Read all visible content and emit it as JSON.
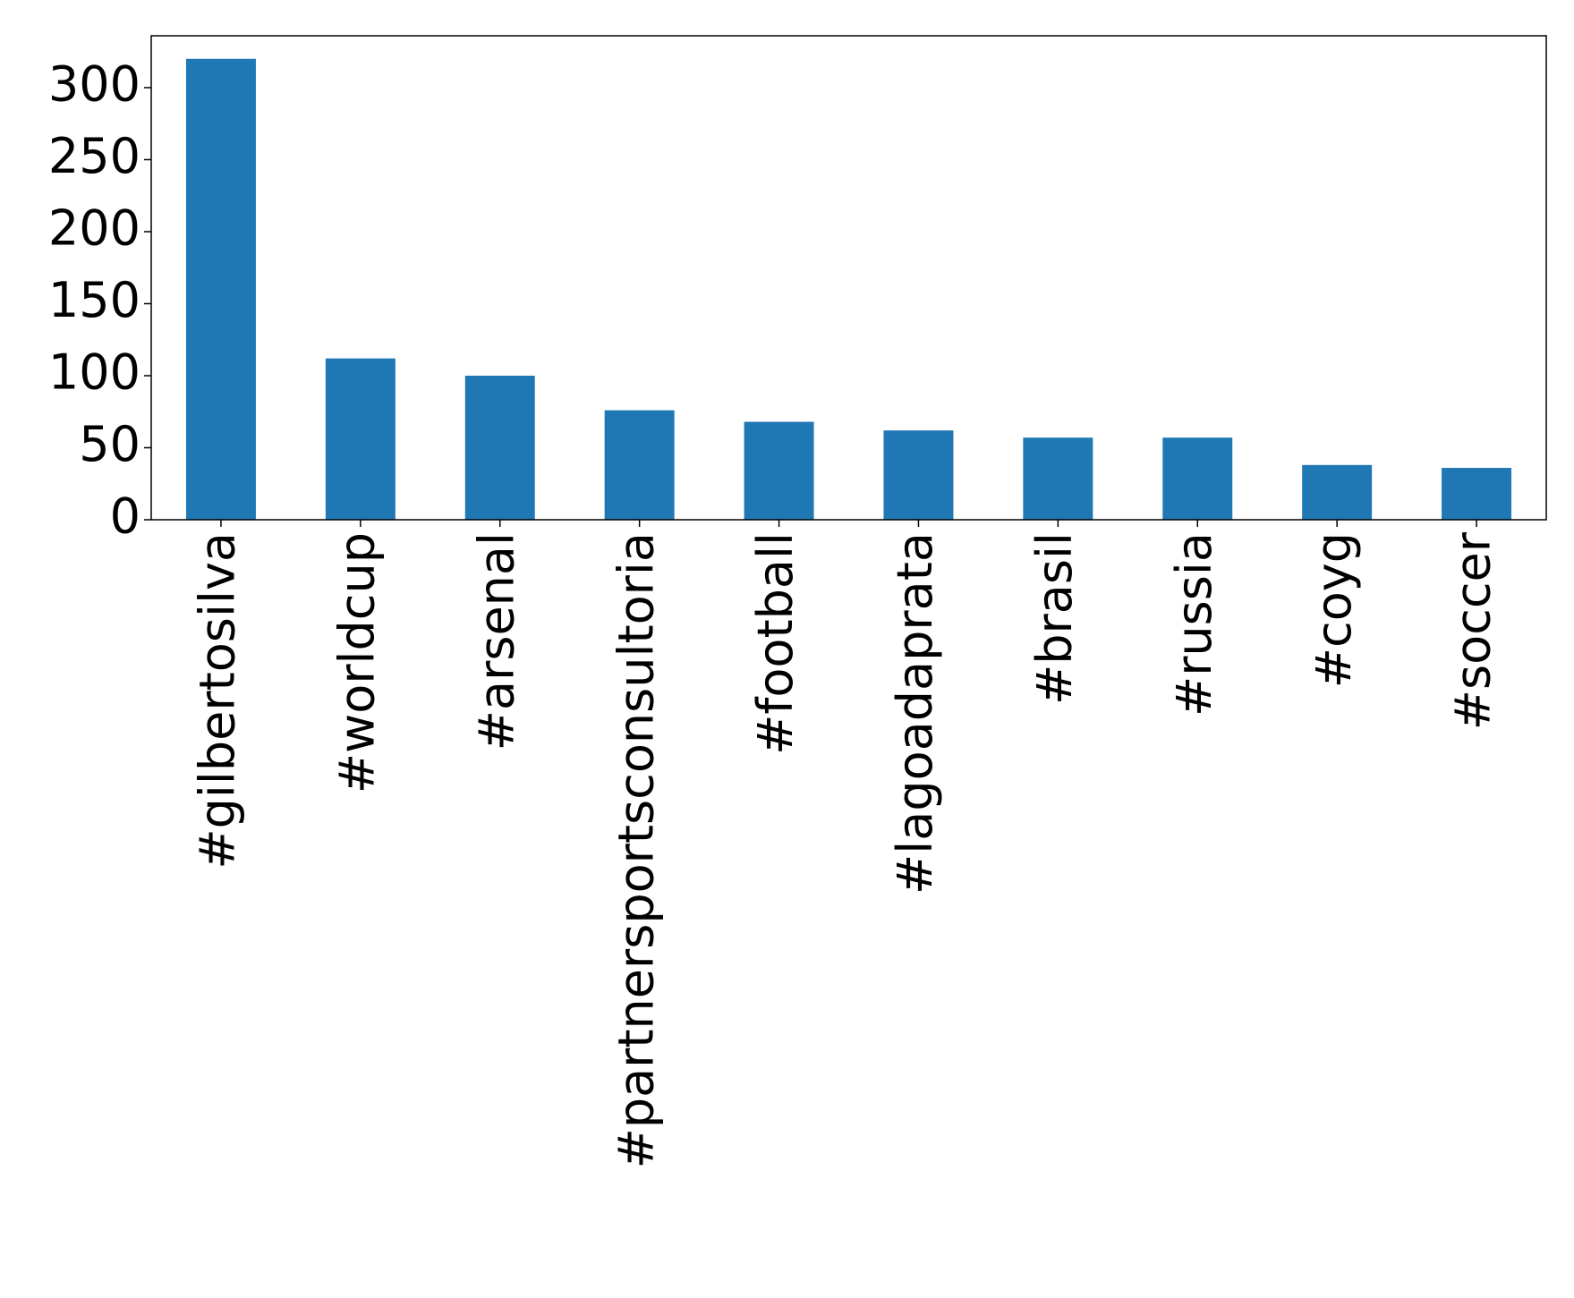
{
  "chart_data": {
    "type": "bar",
    "categories": [
      "#gilbertosilva",
      "#worldcup",
      "#arsenal",
      "#partnersportsconsultoria",
      "#football",
      "#lagoadaprata",
      "#brasil",
      "#russia",
      "#coyg",
      "#soccer"
    ],
    "values": [
      320,
      112,
      100,
      76,
      68,
      62,
      57,
      57,
      38,
      36
    ],
    "color": "#1f77b4",
    "ylim": [
      0,
      336
    ],
    "yticks": [
      0,
      50,
      100,
      150,
      200,
      250,
      300
    ],
    "grid": false
  }
}
